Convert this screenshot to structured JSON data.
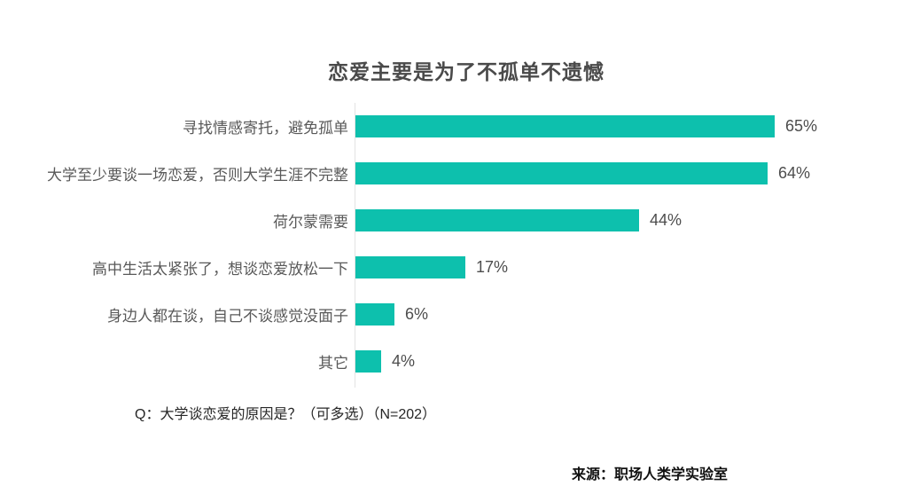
{
  "title": "恋爱主要是为了不孤单不遗憾",
  "chart_data": {
    "type": "bar",
    "orientation": "horizontal",
    "title": "恋爱主要是为了不孤单不遗憾",
    "categories": [
      "寻找情感寄托，避免孤单",
      "大学至少要谈一场恋爱，否则大学生涯不完整",
      "荷尔蒙需要",
      "高中生活太紧张了，想谈恋爱放松一下",
      "身边人都在谈，自己不谈感觉没面子",
      "其它"
    ],
    "values": [
      65,
      64,
      44,
      17,
      6,
      4
    ],
    "value_labels": [
      "65%",
      "64%",
      "44%",
      "17%",
      "6%",
      "4%"
    ],
    "unit": "%",
    "xlim": [
      0,
      100
    ],
    "grid": false,
    "legend": false,
    "bar_color": "#0dc0ad",
    "axis_line_color": "#e3e3e3",
    "label_color": "#595959",
    "value_color": "#4d4d4d",
    "title_color": "#4a4a4a"
  },
  "note": "Q：大学谈恋爱的原因是？（可多选）（N=202）",
  "source": "来源：职场人类学实验室"
}
